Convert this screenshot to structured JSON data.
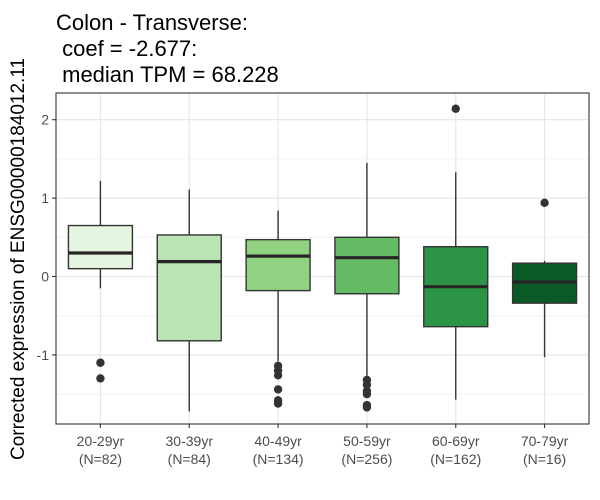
{
  "chart_data": {
    "type": "boxplot",
    "title_lines": [
      "Colon - Transverse:",
      " coef = -2.677:",
      " median TPM = 68.228"
    ],
    "xlabel": "",
    "ylabel": "Corrected expression of ENSG00000184012.11",
    "ylim": [
      -1.9,
      2.3
    ],
    "yticks": [
      -1,
      0,
      1,
      2
    ],
    "grid": true,
    "legend": "none",
    "categories": [
      {
        "label": "20-29yr",
        "n_label": "(N=82)",
        "color": "#e5f5e0",
        "q1": 0.1,
        "median": 0.3,
        "q3": 0.65,
        "whisker_low": -0.15,
        "whisker_high": 1.22,
        "outliers": [
          -1.1,
          -1.3
        ]
      },
      {
        "label": "30-39yr",
        "n_label": "(N=84)",
        "color": "#bae4b3",
        "q1": -0.82,
        "median": 0.19,
        "q3": 0.53,
        "whisker_low": -1.72,
        "whisker_high": 1.11,
        "outliers": []
      },
      {
        "label": "40-49yr",
        "n_label": "(N=134)",
        "color": "#91d282",
        "q1": -0.18,
        "median": 0.26,
        "q3": 0.47,
        "whisker_low": -1.08,
        "whisker_high": 0.84,
        "outliers": [
          -1.14,
          -1.2,
          -1.26,
          -1.44,
          -1.58,
          -1.62
        ]
      },
      {
        "label": "50-59yr",
        "n_label": "(N=256)",
        "color": "#64bb63",
        "q1": -0.22,
        "median": 0.24,
        "q3": 0.5,
        "whisker_low": -1.28,
        "whisker_high": 1.45,
        "outliers": [
          -1.32,
          -1.38,
          -1.46,
          -1.5,
          -1.64,
          -1.67
        ]
      },
      {
        "label": "60-69yr",
        "n_label": "(N=162)",
        "color": "#2c9446",
        "q1": -0.64,
        "median": -0.13,
        "q3": 0.38,
        "whisker_low": -1.57,
        "whisker_high": 1.33,
        "outliers": [
          2.14
        ]
      },
      {
        "label": "70-79yr",
        "n_label": "(N=16)",
        "color": "#0a5a25",
        "q1": -0.34,
        "median": -0.07,
        "q3": 0.17,
        "whisker_low": -1.03,
        "whisker_high": 0.2,
        "outliers": [
          0.94
        ]
      }
    ]
  }
}
